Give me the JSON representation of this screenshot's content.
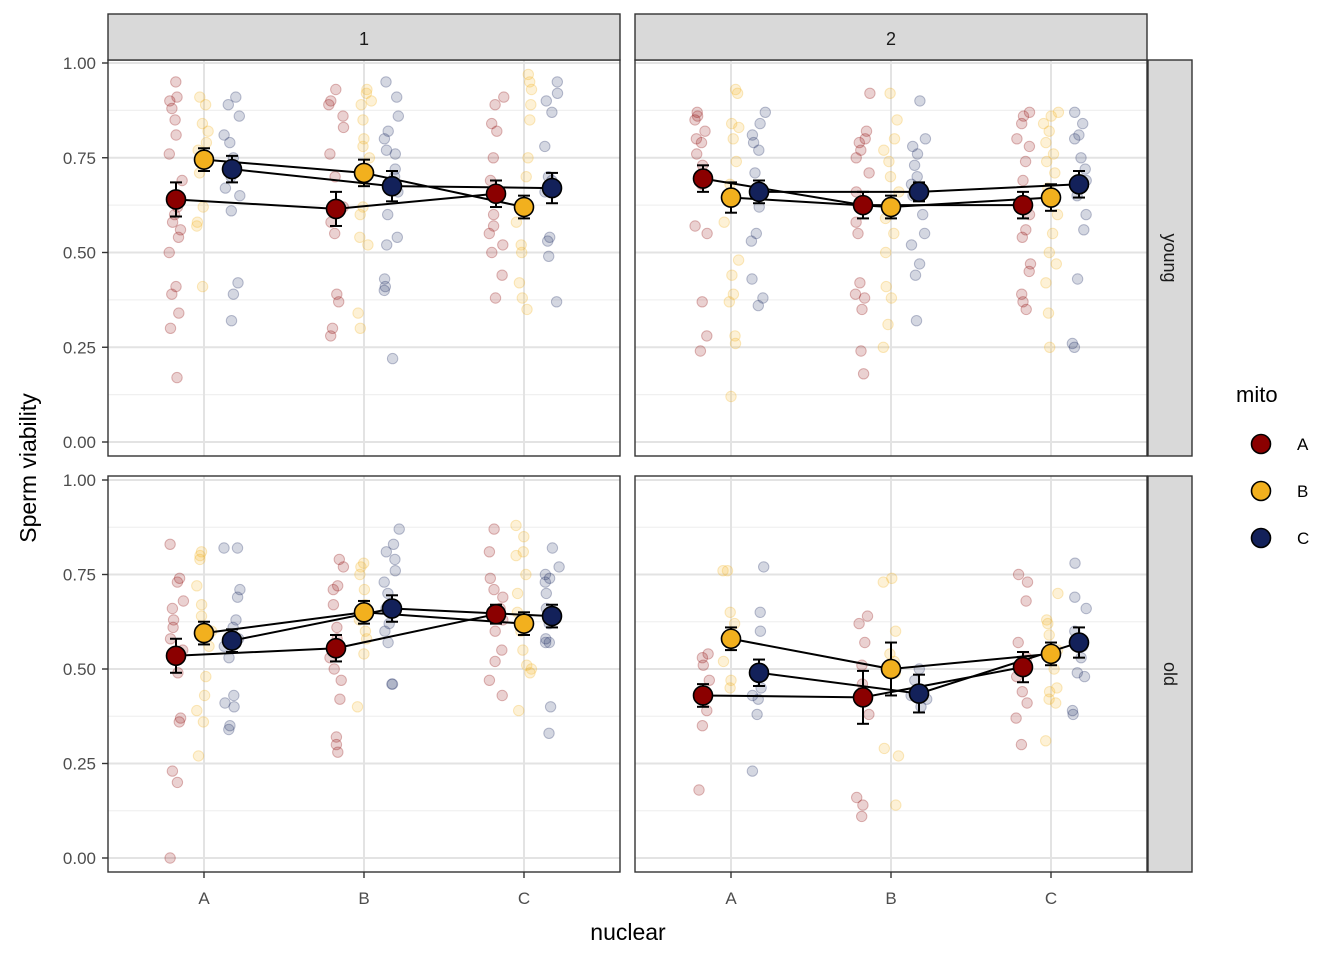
{
  "chart_data": {
    "type": "faceted point-range with jittered raw points",
    "xlabel": "nuclear",
    "ylabel": "Sperm viability",
    "x_categories": [
      "A",
      "B",
      "C"
    ],
    "ylim": [
      0,
      1
    ],
    "y_ticks": [
      "0.00",
      "0.25",
      "0.50",
      "0.75",
      "1.00"
    ],
    "column_strips": [
      "1",
      "2"
    ],
    "row_strips": [
      "young",
      "old"
    ],
    "legend": {
      "title": "mito",
      "entries": [
        {
          "label": "A",
          "color": "#8B0000"
        },
        {
          "label": "B",
          "color": "#F2B01E"
        },
        {
          "label": "C",
          "color": "#13215A"
        }
      ]
    },
    "panels": [
      {
        "col": "1",
        "row": "young",
        "series": [
          {
            "mito": "A",
            "means": [
              0.64,
              0.615,
              0.655
            ],
            "se": [
              0.045,
              0.045,
              0.035
            ],
            "raw": [
              [
                0.95,
                0.91,
                0.9,
                0.88,
                0.85,
                0.81,
                0.76,
                0.69,
                0.62,
                0.6,
                0.58,
                0.56,
                0.54,
                0.5,
                0.41,
                0.39,
                0.34,
                0.3,
                0.17
              ],
              [
                0.93,
                0.9,
                0.89,
                0.86,
                0.83,
                0.76,
                0.7,
                0.62,
                0.58,
                0.55,
                0.39,
                0.37,
                0.3,
                0.28
              ],
              [
                0.91,
                0.89,
                0.84,
                0.82,
                0.75,
                0.69,
                0.66,
                0.6,
                0.57,
                0.55,
                0.52,
                0.5,
                0.44,
                0.38
              ]
            ]
          },
          {
            "mito": "B",
            "means": [
              0.745,
              0.71,
              0.62
            ],
            "se": [
              0.03,
              0.035,
              0.03
            ],
            "raw": [
              [
                0.91,
                0.89,
                0.84,
                0.82,
                0.79,
                0.77,
                0.71,
                0.62,
                0.58,
                0.57,
                0.41
              ],
              [
                0.93,
                0.92,
                0.9,
                0.89,
                0.85,
                0.8,
                0.78,
                0.75,
                0.69,
                0.62,
                0.6,
                0.54,
                0.52,
                0.34,
                0.3
              ],
              [
                0.97,
                0.95,
                0.93,
                0.89,
                0.85,
                0.75,
                0.7,
                0.61,
                0.58,
                0.52,
                0.5,
                0.42,
                0.38,
                0.35
              ]
            ]
          },
          {
            "mito": "C",
            "means": [
              0.72,
              0.675,
              0.67
            ],
            "se": [
              0.035,
              0.04,
              0.04
            ],
            "raw": [
              [
                0.91,
                0.89,
                0.86,
                0.81,
                0.79,
                0.75,
                0.7,
                0.67,
                0.65,
                0.61,
                0.42,
                0.39,
                0.32
              ],
              [
                0.95,
                0.91,
                0.86,
                0.82,
                0.8,
                0.77,
                0.76,
                0.72,
                0.7,
                0.66,
                0.6,
                0.54,
                0.52,
                0.43,
                0.41,
                0.4,
                0.22
              ],
              [
                0.95,
                0.92,
                0.9,
                0.87,
                0.78,
                0.7,
                0.69,
                0.66,
                0.54,
                0.53,
                0.49,
                0.37
              ]
            ]
          }
        ]
      },
      {
        "col": "2",
        "row": "young",
        "series": [
          {
            "mito": "A",
            "means": [
              0.695,
              0.625,
              0.625
            ],
            "se": [
              0.035,
              0.035,
              0.035
            ],
            "raw": [
              [
                0.87,
                0.86,
                0.85,
                0.82,
                0.8,
                0.79,
                0.76,
                0.73,
                0.68,
                0.57,
                0.55,
                0.37,
                0.28,
                0.24
              ],
              [
                0.92,
                0.82,
                0.8,
                0.79,
                0.77,
                0.75,
                0.71,
                0.66,
                0.58,
                0.55,
                0.42,
                0.39,
                0.38,
                0.35,
                0.24,
                0.18
              ],
              [
                0.87,
                0.86,
                0.84,
                0.8,
                0.78,
                0.74,
                0.69,
                0.6,
                0.56,
                0.54,
                0.47,
                0.45,
                0.39,
                0.37,
                0.35
              ]
            ]
          },
          {
            "mito": "B",
            "means": [
              0.645,
              0.62,
              0.645
            ],
            "se": [
              0.04,
              0.03,
              0.035
            ],
            "raw": [
              [
                0.93,
                0.92,
                0.84,
                0.83,
                0.8,
                0.74,
                0.68,
                0.58,
                0.48,
                0.44,
                0.39,
                0.37,
                0.28,
                0.26,
                0.12
              ],
              [
                0.92,
                0.85,
                0.8,
                0.77,
                0.74,
                0.7,
                0.66,
                0.62,
                0.59,
                0.55,
                0.5,
                0.41,
                0.38,
                0.31,
                0.25
              ],
              [
                0.87,
                0.86,
                0.84,
                0.82,
                0.79,
                0.76,
                0.74,
                0.71,
                0.67,
                0.6,
                0.55,
                0.5,
                0.47,
                0.42,
                0.34,
                0.25
              ]
            ]
          },
          {
            "mito": "C",
            "means": [
              0.66,
              0.66,
              0.68
            ],
            "se": [
              0.03,
              0.025,
              0.035
            ],
            "raw": [
              [
                0.87,
                0.84,
                0.81,
                0.79,
                0.77,
                0.71,
                0.67,
                0.62,
                0.55,
                0.53,
                0.43,
                0.38,
                0.36
              ],
              [
                0.9,
                0.8,
                0.78,
                0.76,
                0.73,
                0.7,
                0.68,
                0.65,
                0.6,
                0.55,
                0.52,
                0.47,
                0.44,
                0.32
              ],
              [
                0.87,
                0.84,
                0.81,
                0.8,
                0.75,
                0.72,
                0.69,
                0.65,
                0.6,
                0.56,
                0.43,
                0.26,
                0.25
              ]
            ]
          }
        ]
      },
      {
        "col": "1",
        "row": "old",
        "series": [
          {
            "mito": "A",
            "means": [
              0.535,
              0.555,
              0.645
            ],
            "se": [
              0.045,
              0.035,
              0.025
            ],
            "raw": [
              [
                0.83,
                0.74,
                0.73,
                0.68,
                0.66,
                0.63,
                0.61,
                0.58,
                0.55,
                0.49,
                0.37,
                0.36,
                0.23,
                0.2,
                0.0
              ],
              [
                0.79,
                0.77,
                0.72,
                0.71,
                0.67,
                0.61,
                0.58,
                0.53,
                0.5,
                0.47,
                0.42,
                0.32,
                0.3,
                0.28
              ],
              [
                0.87,
                0.81,
                0.74,
                0.71,
                0.69,
                0.66,
                0.63,
                0.6,
                0.55,
                0.52,
                0.47,
                0.43
              ]
            ]
          },
          {
            "mito": "B",
            "means": [
              0.595,
              0.65,
              0.62
            ],
            "se": [
              0.03,
              0.03,
              0.03
            ],
            "raw": [
              [
                0.81,
                0.8,
                0.79,
                0.72,
                0.67,
                0.64,
                0.6,
                0.56,
                0.48,
                0.43,
                0.39,
                0.36,
                0.27
              ],
              [
                0.78,
                0.77,
                0.75,
                0.71,
                0.67,
                0.63,
                0.6,
                0.58,
                0.54,
                0.4
              ],
              [
                0.88,
                0.85,
                0.81,
                0.8,
                0.75,
                0.7,
                0.65,
                0.6,
                0.55,
                0.51,
                0.5,
                0.49,
                0.39
              ]
            ]
          },
          {
            "mito": "C",
            "means": [
              0.575,
              0.66,
              0.64
            ],
            "se": [
              0.03,
              0.035,
              0.03
            ],
            "raw": [
              [
                0.82,
                0.82,
                0.71,
                0.69,
                0.63,
                0.61,
                0.58,
                0.56,
                0.53,
                0.43,
                0.41,
                0.4,
                0.35,
                0.34
              ],
              [
                0.87,
                0.83,
                0.81,
                0.79,
                0.76,
                0.73,
                0.7,
                0.66,
                0.62,
                0.6,
                0.57,
                0.46,
                0.46
              ],
              [
                0.82,
                0.77,
                0.75,
                0.74,
                0.73,
                0.7,
                0.66,
                0.62,
                0.58,
                0.57,
                0.57,
                0.4,
                0.33
              ]
            ]
          }
        ]
      },
      {
        "col": "2",
        "row": "old",
        "series": [
          {
            "mito": "A",
            "means": [
              0.43,
              0.425,
              0.505
            ],
            "se": [
              0.03,
              0.07,
              0.04
            ],
            "raw": [
              [
                0.54,
                0.53,
                0.51,
                0.47,
                0.44,
                0.42,
                0.39,
                0.35,
                0.18
              ],
              [
                0.64,
                0.62,
                0.57,
                0.51,
                0.46,
                0.38,
                0.16,
                0.14,
                0.11
              ],
              [
                0.75,
                0.73,
                0.68,
                0.57,
                0.53,
                0.48,
                0.44,
                0.41,
                0.37,
                0.3
              ]
            ]
          },
          {
            "mito": "B",
            "means": [
              0.58,
              0.5,
              0.54
            ],
            "se": [
              0.03,
              0.07,
              0.03
            ],
            "raw": [
              [
                0.76,
                0.76,
                0.65,
                0.62,
                0.57,
                0.52,
                0.47,
                0.45
              ],
              [
                0.74,
                0.73,
                0.6,
                0.54,
                0.52,
                0.49,
                0.29,
                0.27,
                0.14
              ],
              [
                0.7,
                0.63,
                0.62,
                0.59,
                0.55,
                0.5,
                0.45,
                0.44,
                0.42,
                0.41,
                0.31
              ]
            ]
          },
          {
            "mito": "C",
            "means": [
              0.49,
              0.435,
              0.57
            ],
            "se": [
              0.035,
              0.05,
              0.04
            ],
            "raw": [
              [
                0.77,
                0.65,
                0.6,
                0.5,
                0.45,
                0.43,
                0.42,
                0.38,
                0.23
              ],
              [
                0.5,
                0.47,
                0.43,
                0.42,
                0.4
              ],
              [
                0.78,
                0.69,
                0.66,
                0.6,
                0.56,
                0.53,
                0.49,
                0.48,
                0.39,
                0.38
              ]
            ]
          }
        ]
      }
    ]
  }
}
